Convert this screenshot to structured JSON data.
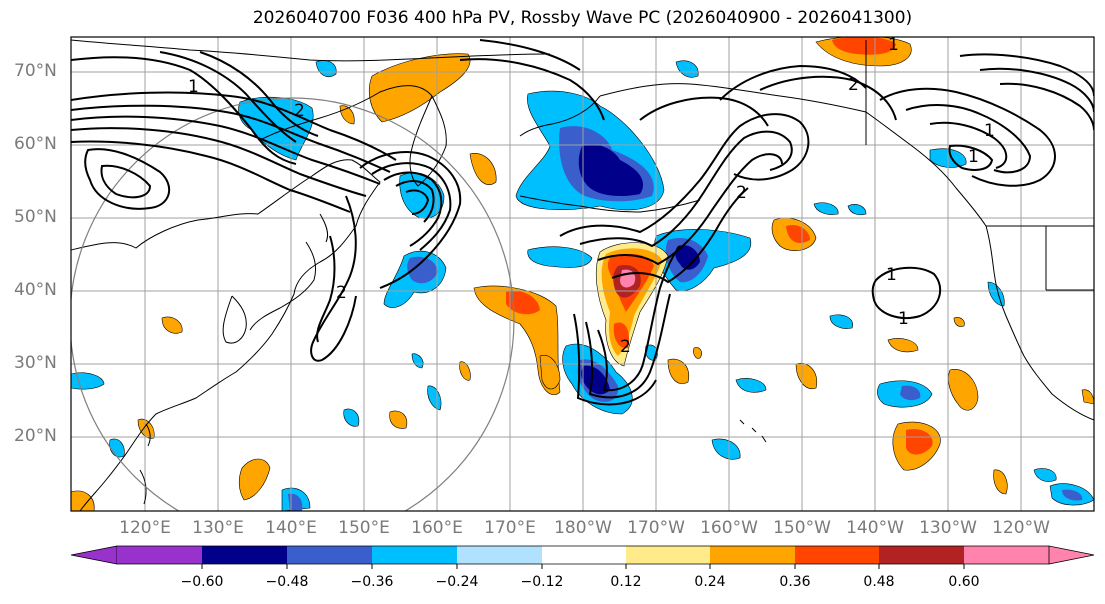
{
  "title": "2026040700 F036 400 hPa PV, Rossby Wave PC (2026040900 - 2026041300)",
  "lat_labels": [
    "70°N",
    "60°N",
    "50°N",
    "40°N",
    "30°N",
    "20°N"
  ],
  "lon_labels": [
    "120°E",
    "130°E",
    "140°E",
    "150°E",
    "160°E",
    "170°E",
    "180°W",
    "170°W",
    "160°W",
    "150°W",
    "140°W",
    "130°W",
    "120°W"
  ],
  "contour_labels": [
    "1",
    "2",
    "1",
    "2",
    "2",
    "1",
    "2",
    "1",
    "2",
    "1",
    "1"
  ],
  "colorbar": {
    "levels": [
      "−0.60",
      "−0.48",
      "−0.36",
      "−0.24",
      "−0.12",
      "0.12",
      "0.24",
      "0.36",
      "0.48",
      "0.60"
    ],
    "colors": [
      "#9932cc",
      "#00008b",
      "#3a5fcd",
      "#00bfff",
      "#b0e2ff",
      "#ffffff",
      "#ffeb8a",
      "#ffa500",
      "#ff4500",
      "#b22222",
      "#ff83ac"
    ]
  },
  "colors": {
    "coast": "#000000",
    "grid": "#a0a0a0",
    "contour": "#000000",
    "circle": "#808080"
  }
}
